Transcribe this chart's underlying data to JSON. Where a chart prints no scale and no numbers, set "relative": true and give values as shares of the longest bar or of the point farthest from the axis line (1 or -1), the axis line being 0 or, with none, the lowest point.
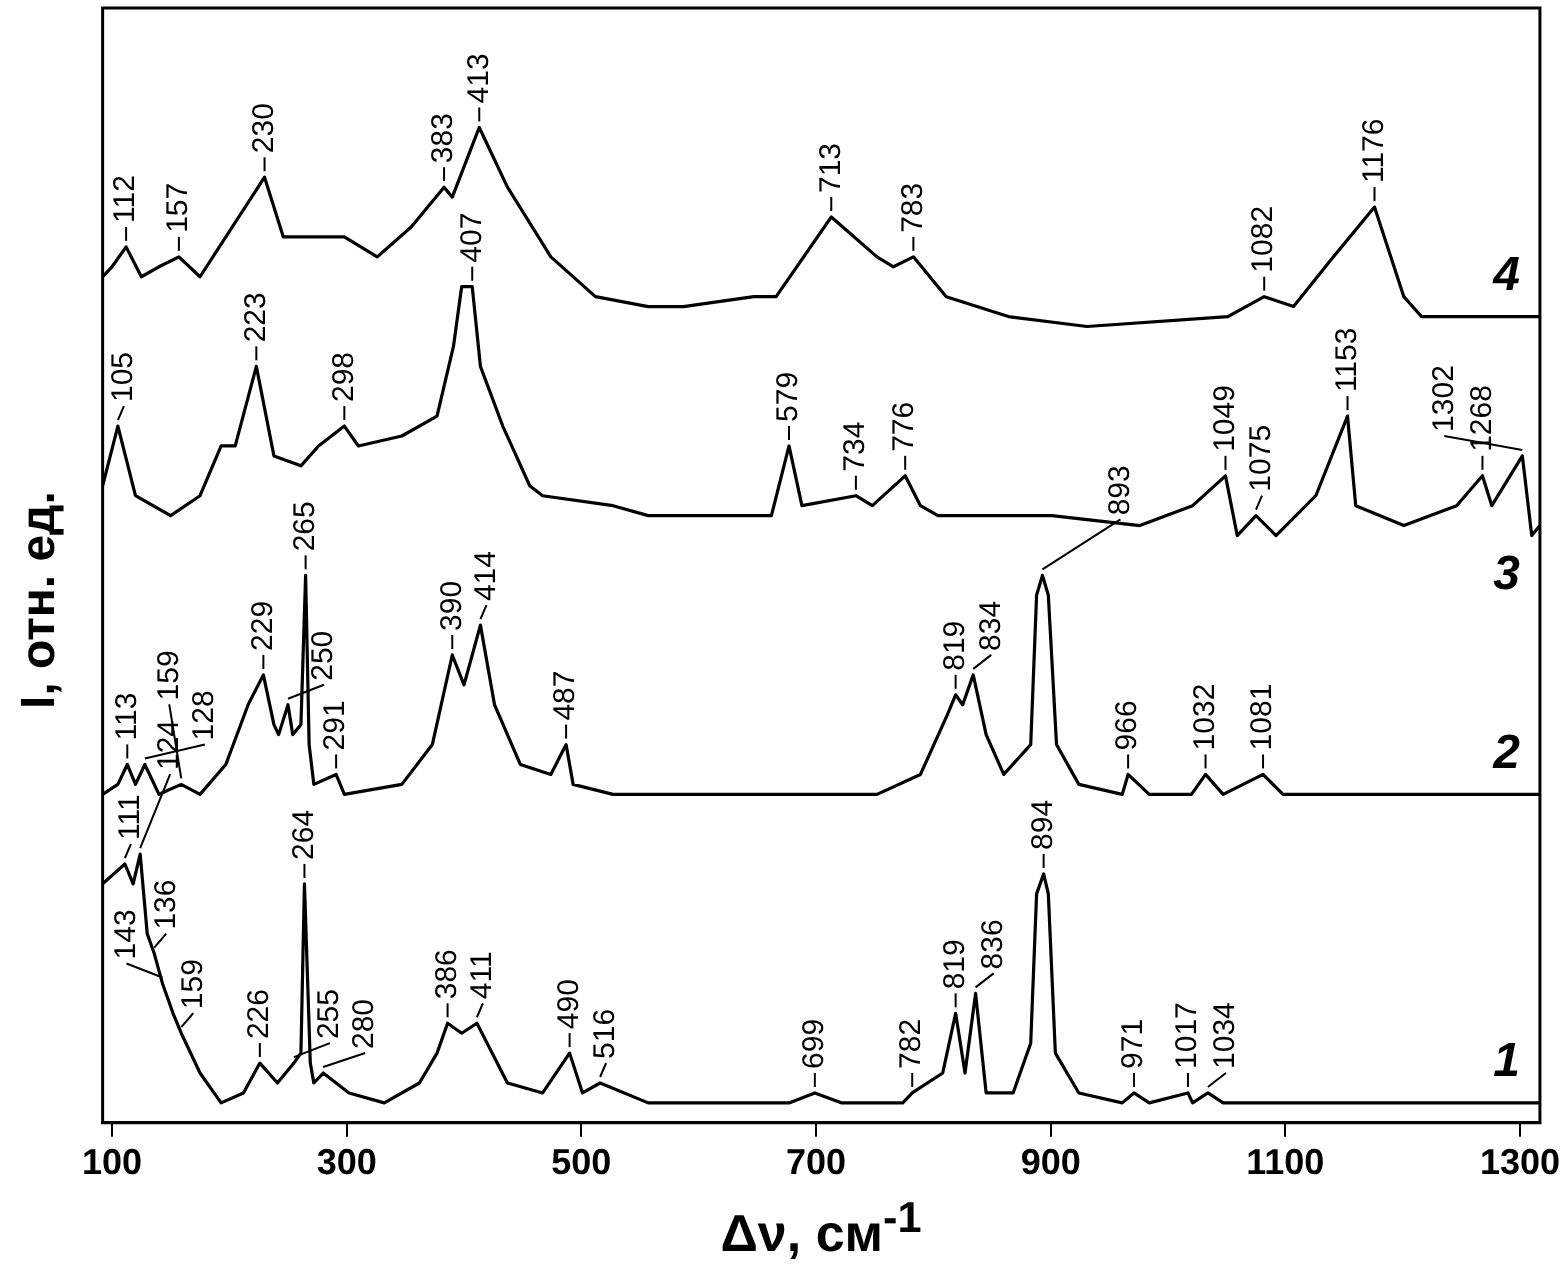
{
  "chart_data": {
    "type": "line",
    "relative": true,
    "xlabel": "Δν, см$^{-1}$",
    "ylabel": "I, отн. ед.",
    "xlim": [
      92,
      1317
    ],
    "xticks": [
      100,
      300,
      500,
      700,
      900,
      1100,
      1300
    ],
    "series": [
      {
        "name": "1",
        "color": "#000000",
        "x": [
          92,
          111,
          118,
          124,
          130,
          136,
          143,
          152,
          159,
          175,
          193,
          212,
          226,
          241,
          255,
          261,
          264,
          269,
          272,
          280,
          302,
          332,
          362,
          377,
          386,
          398,
          411,
          437,
          467,
          490,
          501,
          516,
          557,
          677,
          699,
          722,
          774,
          782,
          808,
          819,
          827,
          836,
          845,
          868,
          883,
          888,
          894,
          898,
          904,
          924,
          961,
          971,
          984,
          1017,
          1021,
          1034,
          1047,
          1126,
          1317
        ],
        "values": [
          0.24,
          0.26,
          0.24,
          0.27,
          0.19,
          0.17,
          0.14,
          0.11,
          0.09,
          0.05,
          0.02,
          0.03,
          0.06,
          0.04,
          0.06,
          0.07,
          0.24,
          0.06,
          0.04,
          0.05,
          0.03,
          0.02,
          0.04,
          0.07,
          0.1,
          0.09,
          0.1,
          0.04,
          0.03,
          0.07,
          0.03,
          0.04,
          0.02,
          0.02,
          0.03,
          0.02,
          0.02,
          0.03,
          0.05,
          0.11,
          0.05,
          0.13,
          0.03,
          0.03,
          0.08,
          0.23,
          0.25,
          0.23,
          0.07,
          0.03,
          0.02,
          0.03,
          0.02,
          0.03,
          0.02,
          0.03,
          0.02,
          0.02,
          0.02
        ]
      },
      {
        "name": "2",
        "color": "#000000",
        "x": [
          92,
          105,
          113,
          120,
          128,
          140,
          159,
          175,
          197,
          216,
          229,
          238,
          242,
          250,
          254,
          261,
          265,
          268,
          272,
          291,
          298,
          347,
          373,
          390,
          400,
          414,
          426,
          448,
          474,
          487,
          493,
          527,
          602,
          752,
          789,
          812,
          819,
          825,
          834,
          845,
          860,
          883,
          888,
          893,
          898,
          905,
          924,
          961,
          966,
          984,
          1020,
          1032,
          1047,
          1081,
          1098,
          1141,
          1317
        ],
        "values": [
          0.33,
          0.34,
          0.36,
          0.34,
          0.36,
          0.33,
          0.34,
          0.33,
          0.36,
          0.42,
          0.45,
          0.4,
          0.39,
          0.42,
          0.39,
          0.4,
          0.55,
          0.38,
          0.34,
          0.35,
          0.33,
          0.34,
          0.38,
          0.47,
          0.44,
          0.5,
          0.42,
          0.36,
          0.35,
          0.38,
          0.34,
          0.33,
          0.33,
          0.33,
          0.35,
          0.41,
          0.43,
          0.42,
          0.45,
          0.39,
          0.35,
          0.38,
          0.53,
          0.55,
          0.53,
          0.38,
          0.34,
          0.33,
          0.35,
          0.33,
          0.33,
          0.35,
          0.33,
          0.35,
          0.33,
          0.33,
          0.33
        ]
      },
      {
        "name": "3",
        "color": "#000000",
        "x": [
          92,
          105,
          120,
          150,
          175,
          193,
          205,
          223,
          238,
          261,
          276,
          298,
          310,
          347,
          377,
          391,
          398,
          407,
          414,
          433,
          456,
          467,
          527,
          557,
          662,
          677,
          688,
          734,
          748,
          776,
          789,
          804,
          826,
          901,
          976,
          1021,
          1049,
          1059,
          1075,
          1092,
          1126,
          1153,
          1160,
          1201,
          1246,
          1268,
          1276,
          1302,
          1310,
          1317
        ],
        "values": [
          0.64,
          0.7,
          0.63,
          0.61,
          0.63,
          0.68,
          0.68,
          0.76,
          0.67,
          0.66,
          0.68,
          0.7,
          0.68,
          0.69,
          0.71,
          0.78,
          0.84,
          0.84,
          0.76,
          0.7,
          0.64,
          0.63,
          0.62,
          0.61,
          0.61,
          0.68,
          0.62,
          0.63,
          0.62,
          0.65,
          0.62,
          0.61,
          0.61,
          0.61,
          0.6,
          0.62,
          0.65,
          0.59,
          0.61,
          0.59,
          0.63,
          0.71,
          0.62,
          0.6,
          0.62,
          0.65,
          0.62,
          0.67,
          0.59,
          0.6
        ]
      },
      {
        "name": "4",
        "color": "#000000",
        "x": [
          92,
          100,
          112,
          125,
          140,
          157,
          175,
          230,
          246,
          270,
          283,
          298,
          326,
          355,
          383,
          390,
          413,
          437,
          474,
          512,
          557,
          587,
          647,
          666,
          713,
          752,
          766,
          783,
          811,
          864,
          931,
          1051,
          1082,
          1107,
          1141,
          1176,
          1201,
          1216,
          1261,
          1317
        ],
        "values": [
          0.85,
          0.86,
          0.88,
          0.85,
          0.86,
          0.87,
          0.85,
          0.95,
          0.89,
          0.89,
          0.89,
          0.89,
          0.87,
          0.9,
          0.94,
          0.93,
          1.0,
          0.94,
          0.87,
          0.83,
          0.82,
          0.82,
          0.83,
          0.83,
          0.91,
          0.87,
          0.86,
          0.87,
          0.83,
          0.81,
          0.8,
          0.81,
          0.83,
          0.82,
          0.87,
          0.92,
          0.83,
          0.81,
          0.81,
          0.81
        ]
      }
    ],
    "annotations": [
      {
        "text": "111",
        "x": 111,
        "y": 0.26
      },
      {
        "text": "124",
        "x": 124,
        "y": 0.27
      },
      {
        "text": "136",
        "x": 136,
        "y": 0.17
      },
      {
        "text": "143",
        "x": 143,
        "y": 0.14
      },
      {
        "text": "159",
        "x": 159,
        "y": 0.09
      },
      {
        "text": "226",
        "x": 226,
        "y": 0.06
      },
      {
        "text": "255",
        "x": 255,
        "y": 0.06
      },
      {
        "text": "264",
        "x": 264,
        "y": 0.24
      },
      {
        "text": "280",
        "x": 280,
        "y": 0.05
      },
      {
        "text": "386",
        "x": 386,
        "y": 0.1
      },
      {
        "text": "411",
        "x": 411,
        "y": 0.1
      },
      {
        "text": "490",
        "x": 490,
        "y": 0.07
      },
      {
        "text": "516",
        "x": 516,
        "y": 0.04
      },
      {
        "text": "699",
        "x": 699,
        "y": 0.03
      },
      {
        "text": "782",
        "x": 782,
        "y": 0.03
      },
      {
        "text": "819",
        "x": 819,
        "y": 0.11
      },
      {
        "text": "836",
        "x": 836,
        "y": 0.13
      },
      {
        "text": "894",
        "x": 894,
        "y": 0.25
      },
      {
        "text": "971",
        "x": 971,
        "y": 0.03
      },
      {
        "text": "1017",
        "x": 1017,
        "y": 0.03
      },
      {
        "text": "1034",
        "x": 1034,
        "y": 0.03
      },
      {
        "text": "113",
        "x": 113,
        "y": 0.36
      },
      {
        "text": "128",
        "x": 128,
        "y": 0.36
      },
      {
        "text": "159",
        "x": 159,
        "y": 0.34
      },
      {
        "text": "229",
        "x": 229,
        "y": 0.45
      },
      {
        "text": "250",
        "x": 250,
        "y": 0.42
      },
      {
        "text": "265",
        "x": 265,
        "y": 0.55
      },
      {
        "text": "291",
        "x": 291,
        "y": 0.35
      },
      {
        "text": "390",
        "x": 390,
        "y": 0.47
      },
      {
        "text": "414",
        "x": 414,
        "y": 0.5
      },
      {
        "text": "487",
        "x": 487,
        "y": 0.38
      },
      {
        "text": "819",
        "x": 819,
        "y": 0.43
      },
      {
        "text": "834",
        "x": 834,
        "y": 0.45
      },
      {
        "text": "893",
        "x": 893,
        "y": 0.55
      },
      {
        "text": "966",
        "x": 966,
        "y": 0.35
      },
      {
        "text": "1032",
        "x": 1032,
        "y": 0.35
      },
      {
        "text": "1081",
        "x": 1081,
        "y": 0.35
      },
      {
        "text": "105",
        "x": 105,
        "y": 0.7
      },
      {
        "text": "223",
        "x": 223,
        "y": 0.76
      },
      {
        "text": "298",
        "x": 298,
        "y": 0.7
      },
      {
        "text": "407",
        "x": 407,
        "y": 0.84
      },
      {
        "text": "579",
        "x": 677,
        "y": 0.68
      },
      {
        "text": "734",
        "x": 734,
        "y": 0.63
      },
      {
        "text": "776",
        "x": 776,
        "y": 0.65
      },
      {
        "text": "1049",
        "x": 1049,
        "y": 0.65
      },
      {
        "text": "1075",
        "x": 1075,
        "y": 0.61
      },
      {
        "text": "1153",
        "x": 1153,
        "y": 0.71
      },
      {
        "text": "1268",
        "x": 1268,
        "y": 0.65
      },
      {
        "text": "1302",
        "x": 1302,
        "y": 0.67
      },
      {
        "text": "112",
        "x": 112,
        "y": 0.88
      },
      {
        "text": "157",
        "x": 157,
        "y": 0.87
      },
      {
        "text": "230",
        "x": 230,
        "y": 0.95
      },
      {
        "text": "383",
        "x": 383,
        "y": 0.94
      },
      {
        "text": "413",
        "x": 413,
        "y": 1.0
      },
      {
        "text": "713",
        "x": 713,
        "y": 0.91
      },
      {
        "text": "783",
        "x": 783,
        "y": 0.87
      },
      {
        "text": "1082",
        "x": 1082,
        "y": 0.83
      },
      {
        "text": "1176",
        "x": 1176,
        "y": 0.92
      }
    ]
  }
}
